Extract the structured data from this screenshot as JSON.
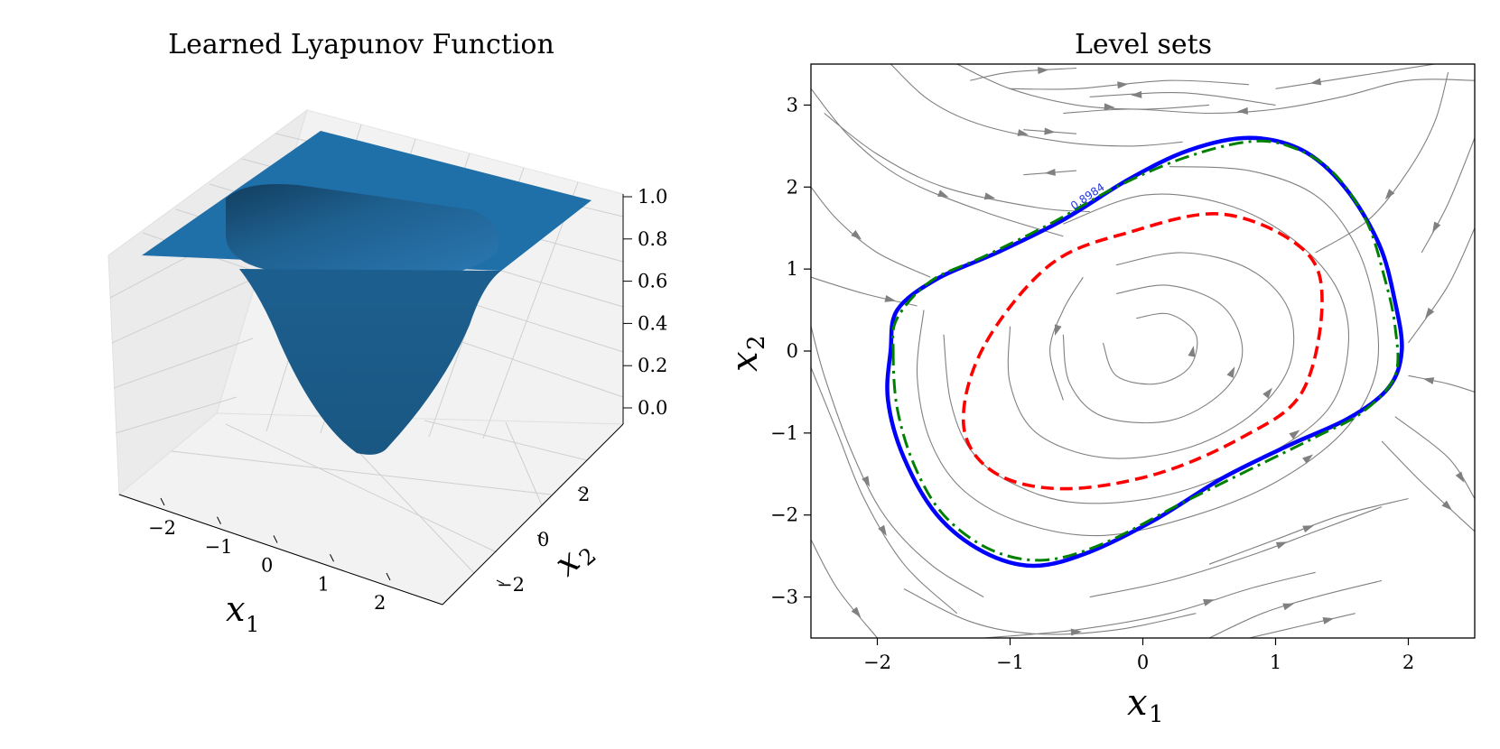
{
  "chart_data": [
    {
      "type": "surface",
      "title": "Learned Lyapunov Function",
      "xlabel": "x",
      "xlabel_sub": "1",
      "ylabel": "x",
      "ylabel_sub": "2",
      "x_ticks": [
        "−2",
        "−1",
        "0",
        "1",
        "2"
      ],
      "y_ticks": [
        "−2",
        "0",
        "2"
      ],
      "z_ticks": [
        "0.0",
        "0.2",
        "0.4",
        "0.6",
        "0.8",
        "1.0"
      ],
      "zlim": [
        0,
        1
      ],
      "surface_color": "#1f6fa8",
      "grid": true
    },
    {
      "type": "streamplot_contour",
      "title": "Level sets",
      "xlabel": "x",
      "xlabel_sub": "1",
      "ylabel": "x",
      "ylabel_sub": "2",
      "xlim": [
        -2.5,
        2.5
      ],
      "ylim": [
        -3.5,
        3.5
      ],
      "x_ticks": [
        {
          "value": -2,
          "label": "−2"
        },
        {
          "value": -1,
          "label": "−1"
        },
        {
          "value": 0,
          "label": "0"
        },
        {
          "value": 1,
          "label": "1"
        },
        {
          "value": 2,
          "label": "2"
        }
      ],
      "y_ticks": [
        {
          "value": -3,
          "label": "−3"
        },
        {
          "value": -2,
          "label": "−2"
        },
        {
          "value": -1,
          "label": "−1"
        },
        {
          "value": 0,
          "label": "0"
        },
        {
          "value": 1,
          "label": "1"
        },
        {
          "value": 2,
          "label": "2"
        },
        {
          "value": 3,
          "label": "3"
        }
      ],
      "contour_label": "0.8984",
      "curves": [
        {
          "style": "blue-solid",
          "color": "#0000ff",
          "points": [
            [
              -1.9,
              0
            ],
            [
              -1.92,
              -0.6
            ],
            [
              -1.8,
              -1.3
            ],
            [
              -1.55,
              -2.0
            ],
            [
              -1.2,
              -2.45
            ],
            [
              -0.82,
              -2.62
            ],
            [
              -0.4,
              -2.45
            ],
            [
              0.1,
              -2.05
            ],
            [
              0.6,
              -1.55
            ],
            [
              1.1,
              -1.15
            ],
            [
              1.55,
              -0.82
            ],
            [
              1.85,
              -0.45
            ],
            [
              1.95,
              0
            ],
            [
              1.9,
              0.6
            ],
            [
              1.78,
              1.3
            ],
            [
              1.52,
              2.0
            ],
            [
              1.2,
              2.45
            ],
            [
              0.8,
              2.6
            ],
            [
              0.35,
              2.45
            ],
            [
              -0.1,
              2.1
            ],
            [
              -0.6,
              1.6
            ],
            [
              -1.1,
              1.2
            ],
            [
              -1.55,
              0.88
            ],
            [
              -1.85,
              0.5
            ]
          ]
        },
        {
          "style": "green-dashdot",
          "color": "#008000",
          "points": [
            [
              -1.88,
              0
            ],
            [
              -1.85,
              -0.7
            ],
            [
              -1.72,
              -1.4
            ],
            [
              -1.5,
              -2.0
            ],
            [
              -1.15,
              -2.42
            ],
            [
              -0.75,
              -2.55
            ],
            [
              -0.3,
              -2.35
            ],
            [
              0.3,
              -1.85
            ],
            [
              0.8,
              -1.45
            ],
            [
              1.3,
              -1.05
            ],
            [
              1.65,
              -0.75
            ],
            [
              1.9,
              -0.3
            ],
            [
              1.9,
              0.3
            ],
            [
              1.82,
              0.9
            ],
            [
              1.68,
              1.6
            ],
            [
              1.42,
              2.2
            ],
            [
              1.1,
              2.5
            ],
            [
              0.78,
              2.55
            ],
            [
              0.3,
              2.35
            ],
            [
              -0.2,
              2.0
            ],
            [
              -0.7,
              1.55
            ],
            [
              -1.2,
              1.15
            ],
            [
              -1.6,
              0.85
            ],
            [
              -1.85,
              0.4
            ]
          ]
        },
        {
          "style": "red-dashed",
          "color": "#ff0000",
          "points": [
            [
              -1.2,
              0.05
            ],
            [
              -1.35,
              -0.9
            ],
            [
              -1.12,
              -1.48
            ],
            [
              -0.6,
              -1.68
            ],
            [
              0.1,
              -1.5
            ],
            [
              0.75,
              -1.05
            ],
            [
              1.2,
              -0.5
            ],
            [
              1.35,
              0.6
            ],
            [
              1.2,
              1.25
            ],
            [
              0.6,
              1.67
            ],
            [
              -0.1,
              1.45
            ],
            [
              -0.7,
              1.05
            ]
          ]
        }
      ],
      "streamlines": [
        [
          [
            -2.5,
            3.2
          ],
          [
            -2.2,
            2.6
          ],
          [
            -1.8,
            2.1
          ],
          [
            -1.2,
            1.7
          ],
          [
            -0.6,
            1.4
          ]
        ],
        [
          [
            -2.5,
            2.0
          ],
          [
            -2.3,
            1.6
          ],
          [
            -2.0,
            1.2
          ],
          [
            -1.6,
            0.9
          ]
        ],
        [
          [
            -2.4,
            2.9
          ],
          [
            -2.0,
            2.4
          ],
          [
            -1.5,
            2.0
          ],
          [
            -0.8,
            1.75
          ],
          [
            -0.4,
            1.7
          ]
        ],
        [
          [
            -1.9,
            3.5
          ],
          [
            -1.6,
            3.05
          ],
          [
            -1.2,
            2.75
          ],
          [
            -0.6,
            2.55
          ],
          [
            -0.1,
            2.5
          ],
          [
            0.3,
            2.55
          ]
        ],
        [
          [
            -1.4,
            3.5
          ],
          [
            -1.0,
            3.2
          ],
          [
            -0.5,
            3.0
          ],
          [
            0.0,
            2.95
          ],
          [
            0.5,
            3.0
          ]
        ],
        [
          [
            -1.3,
            3.3
          ],
          [
            -1.0,
            3.4
          ],
          [
            -0.5,
            3.45
          ]
        ],
        [
          [
            -0.5,
            2.2
          ],
          [
            -0.9,
            2.15
          ]
        ],
        [
          [
            2.5,
            3.3
          ],
          [
            2.0,
            3.3
          ],
          [
            1.5,
            3.1
          ],
          [
            1.0,
            2.95
          ],
          [
            0.5,
            2.9
          ],
          [
            -0.1,
            2.95
          ],
          [
            -0.6,
            2.9
          ]
        ],
        [
          [
            2.2,
            3.5
          ],
          [
            1.6,
            3.35
          ],
          [
            1.0,
            3.2
          ]
        ],
        [
          [
            2.3,
            3.4
          ],
          [
            2.2,
            2.8
          ],
          [
            2.0,
            2.2
          ],
          [
            1.7,
            1.6
          ],
          [
            1.3,
            1.2
          ]
        ],
        [
          [
            2.5,
            2.6
          ],
          [
            2.3,
            1.8
          ],
          [
            2.1,
            1.2
          ]
        ],
        [
          [
            2.5,
            1.5
          ],
          [
            2.3,
            0.8
          ],
          [
            2.0,
            0.1
          ]
        ],
        [
          [
            2.5,
            -0.5
          ],
          [
            2.3,
            -0.4
          ],
          [
            2.0,
            -0.3
          ]
        ],
        [
          [
            1.9,
            -0.8
          ],
          [
            2.3,
            -1.3
          ],
          [
            2.5,
            -1.8
          ]
        ],
        [
          [
            1.8,
            -1.1
          ],
          [
            2.1,
            -1.6
          ],
          [
            2.5,
            -2.2
          ]
        ],
        [
          [
            -2.5,
            -2.3
          ],
          [
            -2.3,
            -2.9
          ],
          [
            -2.0,
            -3.5
          ]
        ],
        [
          [
            -2.5,
            -0.2
          ],
          [
            -2.3,
            -1.0
          ],
          [
            -2.1,
            -1.8
          ],
          [
            -1.8,
            -2.6
          ],
          [
            -1.4,
            -3.2
          ]
        ],
        [
          [
            -2.5,
            0.3
          ],
          [
            -2.4,
            -0.3
          ],
          [
            -2.2,
            -1.2
          ],
          [
            -1.95,
            -2.0
          ],
          [
            -1.6,
            -2.6
          ],
          [
            -1.2,
            -3.0
          ]
        ],
        [
          [
            -1.8,
            -2.9
          ],
          [
            -1.3,
            -3.3
          ],
          [
            -0.8,
            -3.45
          ],
          [
            -0.2,
            -3.4
          ],
          [
            0.4,
            -3.2
          ]
        ],
        [
          [
            -1.2,
            -3.5
          ],
          [
            -0.5,
            -3.4
          ],
          [
            0.2,
            -3.2
          ],
          [
            0.8,
            -2.9
          ],
          [
            1.3,
            -2.7
          ]
        ],
        [
          [
            -0.4,
            -3.0
          ],
          [
            0.2,
            -2.8
          ],
          [
            0.8,
            -2.5
          ],
          [
            1.3,
            -2.2
          ],
          [
            1.8,
            -1.9
          ]
        ],
        [
          [
            0.5,
            -2.6
          ],
          [
            1.0,
            -2.3
          ],
          [
            1.5,
            -2.0
          ],
          [
            2.0,
            -1.8
          ]
        ],
        [
          [
            0.5,
            -3.5
          ],
          [
            0.9,
            -3.2
          ],
          [
            1.3,
            -3.0
          ],
          [
            1.8,
            -2.8
          ]
        ],
        [
          [
            0.8,
            -3.5
          ],
          [
            1.2,
            -3.35
          ],
          [
            1.6,
            -3.2
          ]
        ],
        [
          [
            -2.5,
            0.9
          ],
          [
            -2.1,
            0.7
          ],
          [
            -1.7,
            0.55
          ]
        ],
        [
          [
            -1.0,
            0.3
          ],
          [
            -1.0,
            -0.4
          ],
          [
            -0.8,
            -1.0
          ],
          [
            -0.3,
            -1.3
          ],
          [
            0.3,
            -1.2
          ],
          [
            0.8,
            -0.8
          ],
          [
            1.1,
            -0.2
          ],
          [
            1.1,
            0.5
          ],
          [
            0.8,
            1.0
          ],
          [
            0.3,
            1.2
          ],
          [
            -0.2,
            1.05
          ]
        ],
        [
          [
            -0.6,
            0.2
          ],
          [
            -0.55,
            -0.4
          ],
          [
            -0.3,
            -0.8
          ],
          [
            0.2,
            -0.85
          ],
          [
            0.6,
            -0.5
          ],
          [
            0.75,
            0.0
          ],
          [
            0.6,
            0.55
          ],
          [
            0.2,
            0.8
          ],
          [
            -0.2,
            0.7
          ]
        ],
        [
          [
            -0.3,
            0.1
          ],
          [
            -0.2,
            -0.3
          ],
          [
            0.1,
            -0.4
          ],
          [
            0.35,
            -0.2
          ],
          [
            0.4,
            0.2
          ],
          [
            0.2,
            0.45
          ],
          [
            -0.05,
            0.4
          ]
        ],
        [
          [
            -0.45,
            0.9
          ],
          [
            -0.6,
            0.5
          ],
          [
            -0.7,
            0.0
          ],
          [
            -0.6,
            -0.6
          ]
        ],
        [
          [
            -1.5,
            0.2
          ],
          [
            -1.45,
            -0.6
          ],
          [
            -1.3,
            -1.2
          ],
          [
            -1.0,
            -1.6
          ],
          [
            -0.5,
            -1.85
          ],
          [
            0.2,
            -1.75
          ],
          [
            0.9,
            -1.3
          ],
          [
            1.4,
            -0.7
          ],
          [
            1.55,
            0.1
          ],
          [
            1.45,
            0.8
          ],
          [
            1.1,
            1.4
          ],
          [
            0.6,
            1.8
          ],
          [
            0.0,
            1.9
          ],
          [
            -0.6,
            1.55
          ]
        ],
        [
          [
            -1.65,
            0.5
          ],
          [
            -1.7,
            -0.3
          ],
          [
            -1.6,
            -1.1
          ],
          [
            -1.35,
            -1.7
          ],
          [
            -0.9,
            -2.1
          ],
          [
            -0.3,
            -2.25
          ],
          [
            0.4,
            -2.0
          ],
          [
            1.0,
            -1.6
          ],
          [
            1.5,
            -1.0
          ],
          [
            1.75,
            -0.3
          ],
          [
            1.75,
            0.5
          ],
          [
            1.6,
            1.3
          ],
          [
            1.3,
            1.9
          ],
          [
            0.8,
            2.2
          ],
          [
            0.2,
            2.25
          ]
        ],
        [
          [
            -1.0,
            3.2
          ],
          [
            -0.5,
            3.2
          ],
          [
            0.2,
            3.3
          ],
          [
            0.8,
            3.25
          ]
        ],
        [
          [
            -0.9,
            2.7
          ],
          [
            -0.5,
            2.65
          ]
        ],
        [
          [
            1.0,
            3.0
          ],
          [
            0.3,
            3.15
          ],
          [
            -0.4,
            3.1
          ]
        ]
      ],
      "stream_color": "#808080"
    }
  ]
}
